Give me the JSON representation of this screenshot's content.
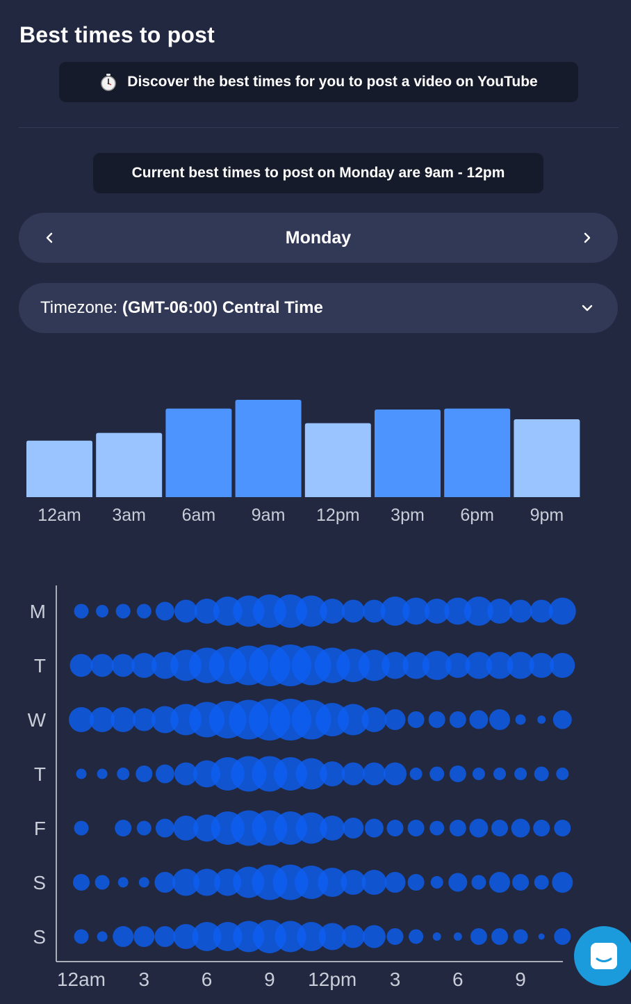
{
  "page": {
    "title": "Best times to post",
    "info_banner": "Discover the best times for you to post a video on YouTube",
    "best_times_banner": "Current best times to post on Monday are 9am - 12pm"
  },
  "day_selector": {
    "day": "Monday",
    "prev_icon": "chevron-left-icon",
    "next_icon": "chevron-right-icon"
  },
  "timezone": {
    "label": "Timezone:",
    "value": "(GMT-06:00) Central Time"
  },
  "colors": {
    "background": "#212840",
    "bar_high": "#4d94ff",
    "bar_low": "#99c4ff",
    "bubble": "#0d5ef0",
    "chat": "#1c9bdc"
  },
  "chart_data": [
    {
      "type": "bar",
      "categories": [
        "12am",
        "3am",
        "6am",
        "9am",
        "12pm",
        "3pm",
        "6pm",
        "9pm"
      ],
      "values": [
        58,
        66,
        91,
        100,
        76,
        90,
        91,
        80
      ],
      "highlighted": [
        false,
        false,
        true,
        true,
        false,
        true,
        true,
        false
      ],
      "title": "",
      "xlabel": "",
      "ylabel": "",
      "ylim": [
        0,
        100
      ],
      "grid": false
    },
    {
      "type": "scatter",
      "subtype": "bubble-matrix",
      "rows": [
        "M",
        "T",
        "W",
        "T",
        "F",
        "S",
        "S"
      ],
      "x_ticks": [
        "12am",
        "3",
        "6",
        "9",
        "12pm",
        "3",
        "6",
        "9"
      ],
      "hours": [
        0,
        1,
        2,
        3,
        4,
        5,
        6,
        7,
        8,
        9,
        10,
        11,
        12,
        13,
        14,
        15,
        16,
        17,
        18,
        19,
        20,
        21,
        22,
        23
      ],
      "values": [
        [
          7,
          6,
          7,
          7,
          9,
          11,
          12,
          14,
          15,
          16,
          16,
          15,
          12,
          11,
          11,
          14,
          13,
          12,
          13,
          14,
          12,
          11,
          11,
          13
        ],
        [
          11,
          11,
          11,
          12,
          13,
          15,
          17,
          18,
          19,
          20,
          20,
          19,
          17,
          16,
          15,
          13,
          13,
          14,
          12,
          13,
          13,
          13,
          12,
          12
        ],
        [
          12,
          12,
          12,
          11,
          13,
          15,
          17,
          18,
          19,
          20,
          20,
          19,
          16,
          15,
          12,
          10,
          8,
          8,
          8,
          9,
          10,
          5,
          4,
          9
        ],
        [
          5,
          5,
          6,
          8,
          9,
          11,
          13,
          16,
          17,
          17,
          16,
          15,
          12,
          11,
          11,
          11,
          6,
          7,
          8,
          6,
          6,
          6,
          7,
          6
        ],
        [
          7,
          0,
          8,
          7,
          9,
          12,
          13,
          16,
          17,
          17,
          16,
          15,
          12,
          10,
          9,
          8,
          8,
          7,
          8,
          9,
          8,
          9,
          8,
          8
        ],
        [
          8,
          7,
          5,
          5,
          10,
          13,
          13,
          13,
          15,
          17,
          17,
          16,
          14,
          12,
          12,
          10,
          8,
          6,
          9,
          7,
          10,
          8,
          7,
          10
        ],
        [
          7,
          5,
          10,
          10,
          10,
          12,
          14,
          14,
          15,
          16,
          15,
          14,
          13,
          11,
          11,
          8,
          7,
          4,
          4,
          8,
          8,
          7,
          3,
          8
        ]
      ],
      "value_scale": "relative bubble size, 0-20",
      "grid": false
    }
  ],
  "chat_button": {
    "icon": "chat-icon"
  }
}
